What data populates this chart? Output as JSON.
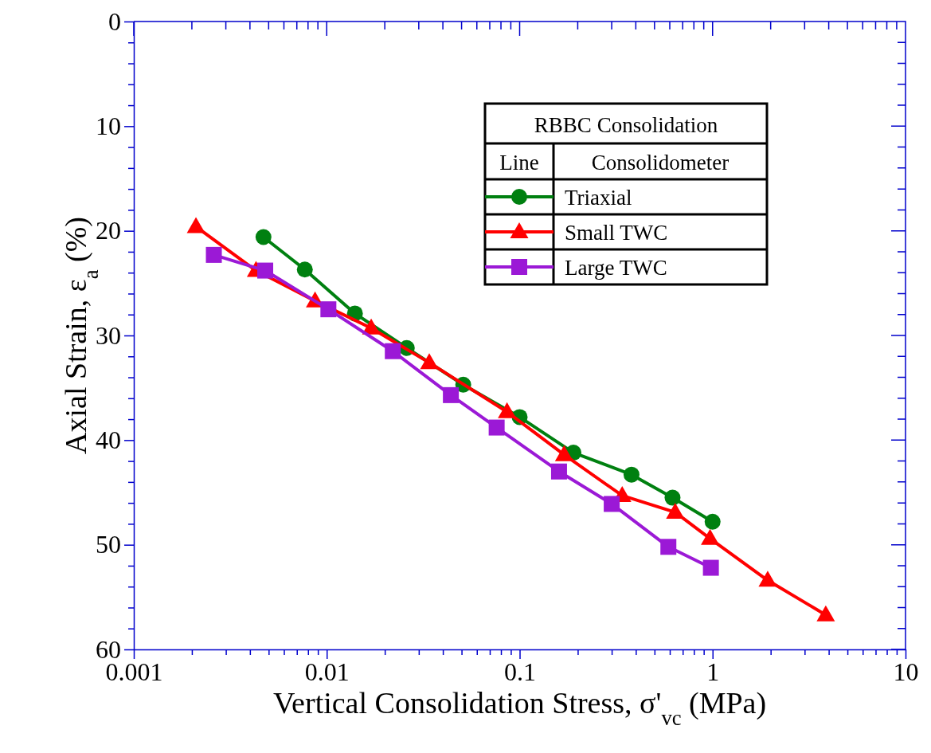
{
  "chart_data": {
    "type": "line",
    "xlabel": "Vertical Consolidation Stress, σ'$_{vc}$ (MPa)",
    "ylabel": "Axial Strain, ε$_{a}$ (%)",
    "legend_title": "RBBC Consolidation",
    "annotations": [
      "Line",
      "Consolidometer"
    ],
    "legend": "top right",
    "log": "x",
    "grid": false,
    "line_style": "solid",
    "xlim": [
      0.001,
      10
    ],
    "ylim": [
      60,
      0
    ],
    "xticks": [
      0.001,
      {
        "value": 0.002,
        "label": null
      },
      {
        "value": 0.003,
        "label": null
      },
      {
        "value": 0.004,
        "label": null
      },
      {
        "value": 0.005,
        "label": null
      },
      {
        "value": 0.006,
        "label": null
      },
      {
        "value": 0.007,
        "label": null
      },
      {
        "value": 0.008,
        "label": null
      },
      {
        "value": 0.009,
        "label": null
      },
      0.01,
      {
        "value": 0.02,
        "label": null
      },
      {
        "value": 0.03,
        "label": null
      },
      {
        "value": 0.04,
        "label": null
      },
      {
        "value": 0.05,
        "label": null
      },
      {
        "value": 0.06,
        "label": null
      },
      {
        "value": 0.07,
        "label": null
      },
      {
        "value": 0.08,
        "label": null
      },
      {
        "value": 0.09,
        "label": null
      },
      0.1,
      {
        "value": 0.2,
        "label": null
      },
      {
        "value": 0.3,
        "label": null
      },
      {
        "value": 0.4,
        "label": null
      },
      {
        "value": 0.5,
        "label": null
      },
      {
        "value": 0.6,
        "label": null
      },
      {
        "value": 0.7,
        "label": null
      },
      {
        "value": 0.8,
        "label": null
      },
      {
        "value": 0.9,
        "label": null
      },
      1,
      {
        "value": 2,
        "label": null
      },
      {
        "value": 3,
        "label": null
      },
      {
        "value": 4,
        "label": null
      },
      {
        "value": 5,
        "label": null
      },
      {
        "value": 6,
        "label": null
      },
      {
        "value": 7,
        "label": null
      },
      {
        "value": 8,
        "label": null
      },
      {
        "value": 9,
        "label": null
      },
      10
    ],
    "yticks": [
      0,
      {
        "value": 2,
        "label": null
      },
      {
        "value": 4,
        "label": null
      },
      {
        "value": 6,
        "label": null
      },
      {
        "value": 8,
        "label": null
      },
      10,
      {
        "value": 12,
        "label": null
      },
      {
        "value": 14,
        "label": null
      },
      {
        "value": 16,
        "label": null
      },
      {
        "value": 18,
        "label": null
      },
      20,
      {
        "value": 22,
        "label": null
      },
      {
        "value": 24,
        "label": null
      },
      {
        "value": 26,
        "label": null
      },
      {
        "value": 28,
        "label": null
      },
      30,
      {
        "value": 32,
        "label": null
      },
      {
        "value": 34,
        "label": null
      },
      {
        "value": 36,
        "label": null
      },
      {
        "value": 38,
        "label": null
      },
      40,
      {
        "value": 42,
        "label": null
      },
      {
        "value": 44,
        "label": null
      },
      {
        "value": 46,
        "label": null
      },
      {
        "value": 48,
        "label": null
      },
      50,
      {
        "value": 52,
        "label": null
      },
      {
        "value": 54,
        "label": null
      },
      {
        "value": 56,
        "label": null
      },
      {
        "value": 58,
        "label": null
      },
      60
    ],
    "series": [
      {
        "name": "Triaxial",
        "color": "#008010",
        "marker": "circle",
        "x": [
          0.0047,
          0.0077,
          0.014,
          0.026,
          0.051,
          0.1,
          0.19,
          0.38,
          0.62,
          1.0
        ],
        "values": [
          20.6,
          23.7,
          27.9,
          31.2,
          34.7,
          37.8,
          41.2,
          43.3,
          45.5,
          47.8
        ]
      },
      {
        "name": "Small TWC",
        "color": "#ff0000",
        "marker": "triangle",
        "x": [
          0.0021,
          0.0043,
          0.0087,
          0.017,
          0.034,
          0.086,
          0.17,
          0.34,
          0.64,
          0.97,
          1.93,
          3.86
        ],
        "values": [
          19.6,
          23.8,
          26.7,
          29.3,
          32.6,
          37.3,
          41.4,
          45.3,
          46.9,
          49.4,
          53.4,
          56.7
        ]
      },
      {
        "name": "Large TWC",
        "color": "#9b19d6",
        "marker": "square",
        "x": [
          0.0026,
          0.0048,
          0.0102,
          0.022,
          0.044,
          0.076,
          0.16,
          0.3,
          0.59,
          0.98
        ],
        "values": [
          22.3,
          23.8,
          27.5,
          31.5,
          35.7,
          38.8,
          43.0,
          46.1,
          50.2,
          52.2
        ]
      }
    ]
  }
}
